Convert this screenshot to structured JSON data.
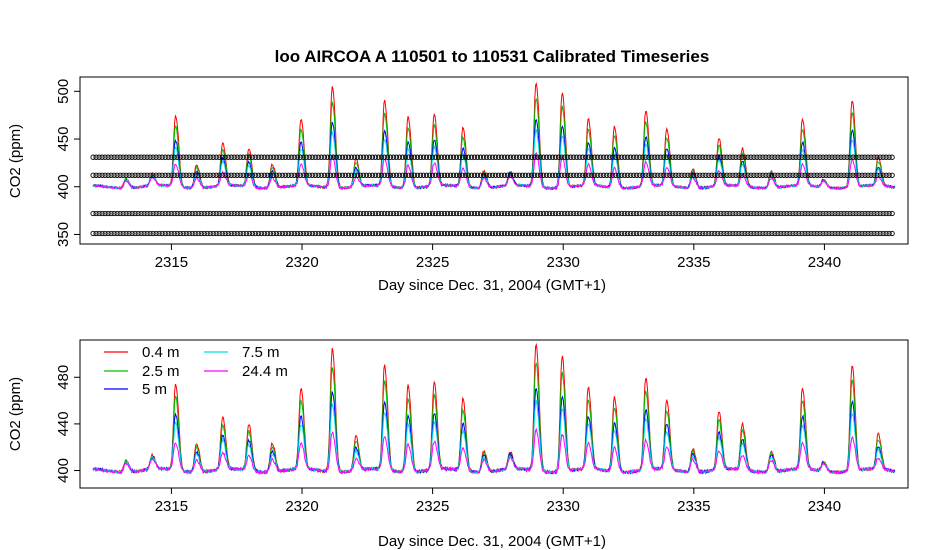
{
  "chart_data": [
    {
      "type": "line",
      "title": "loo   AIRCOA  A    110501  to  110531   Calibrated Timeseries",
      "xlabel": "Day since Dec. 31, 2004 (GMT+1)",
      "ylabel": "CO2 (ppm)",
      "xlim": [
        2311.5,
        2343.2
      ],
      "ylim": [
        340,
        515
      ],
      "xticks": [
        2315,
        2320,
        2325,
        2330,
        2335,
        2340
      ],
      "yticks": [
        350,
        400,
        450,
        500
      ],
      "series_colors": [
        "#ff0000",
        "#00c000",
        "#0000ff",
        "#00e0e0",
        "#ff00ff"
      ],
      "calibration_levels": [
        {
          "y": 431,
          "marker": "circle",
          "color": "#000000"
        },
        {
          "y": 412,
          "marker": "circle",
          "color": "#000000"
        },
        {
          "y": 372,
          "marker": "circle",
          "color": "#000000"
        },
        {
          "y": 351,
          "marker": "circle",
          "color": "#000000"
        }
      ],
      "calibration_x_range": [
        2312,
        2342.7
      ],
      "base_level": 400,
      "peaks": [
        {
          "x": 2313.3,
          "peak": 410
        },
        {
          "x": 2314.3,
          "peak": 412
        },
        {
          "x": 2315.2,
          "peak": 475
        },
        {
          "x": 2316.0,
          "peak": 425
        },
        {
          "x": 2317.0,
          "peak": 445
        },
        {
          "x": 2318.0,
          "peak": 440
        },
        {
          "x": 2318.9,
          "peak": 425
        },
        {
          "x": 2320.0,
          "peak": 470
        },
        {
          "x": 2321.2,
          "peak": 507
        },
        {
          "x": 2322.1,
          "peak": 430
        },
        {
          "x": 2323.2,
          "peak": 490
        },
        {
          "x": 2324.1,
          "peak": 475
        },
        {
          "x": 2325.1,
          "peak": 475
        },
        {
          "x": 2326.2,
          "peak": 462
        },
        {
          "x": 2327.0,
          "peak": 418
        },
        {
          "x": 2328.0,
          "peak": 415
        },
        {
          "x": 2329.0,
          "peak": 510
        },
        {
          "x": 2330.0,
          "peak": 500
        },
        {
          "x": 2331.0,
          "peak": 470
        },
        {
          "x": 2332.0,
          "peak": 465
        },
        {
          "x": 2333.2,
          "peak": 480
        },
        {
          "x": 2334.0,
          "peak": 460
        },
        {
          "x": 2335.0,
          "peak": 420
        },
        {
          "x": 2336.0,
          "peak": 450
        },
        {
          "x": 2336.9,
          "peak": 440
        },
        {
          "x": 2338.0,
          "peak": 418
        },
        {
          "x": 2339.2,
          "peak": 470
        },
        {
          "x": 2340.0,
          "peak": 408
        },
        {
          "x": 2341.1,
          "peak": 492
        },
        {
          "x": 2342.1,
          "peak": 430
        }
      ]
    },
    {
      "type": "line",
      "title": "",
      "xlabel": "Day since Dec. 31, 2004 (GMT+1)",
      "ylabel": "CO2 (ppm)",
      "xlim": [
        2311.5,
        2343.2
      ],
      "ylim": [
        385,
        512
      ],
      "xticks": [
        2315,
        2320,
        2325,
        2330,
        2335,
        2340
      ],
      "yticks": [
        400,
        440,
        480
      ],
      "legend": {
        "placement": "top-left",
        "entries": [
          {
            "label": "0.4 m",
            "color": "#ff0000"
          },
          {
            "label": "2.5 m",
            "color": "#00c000"
          },
          {
            "label": "5 m",
            "color": "#0000ff"
          },
          {
            "label": "7.5 m",
            "color": "#00e0e0"
          },
          {
            "label": "24.4 m",
            "color": "#ff00ff"
          }
        ]
      }
    }
  ]
}
